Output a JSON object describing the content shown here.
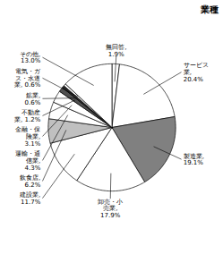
{
  "chart_data": {
    "type": "pie",
    "title": "業種",
    "categories": [
      "無回答,\n1.9%",
      "サービス\n業,\n20.4%",
      "製造業,\n19.1%",
      "卸売・小\n売業,\n17.9%",
      "建設業,\n11.7%",
      "飲食店,\n6.2%",
      "運輸・通\n信業,\n4.3%",
      "金融・保\n険業,\n3.1%",
      "不動産\n業, 1.2%",
      "鉱業,\n0.6%",
      "電気・ガ\nス・水道\n業, 0.6%",
      "その他,\n13.0%"
    ],
    "values": [
      1.9,
      20.4,
      19.1,
      17.9,
      11.7,
      6.2,
      4.3,
      3.1,
      1.2,
      0.6,
      0.6,
      13.0
    ],
    "colors": [
      "white",
      "white",
      "#808080",
      "white",
      "white",
      "#c0c0c0",
      "white",
      "white",
      "#505050",
      "#282828",
      "white",
      "white"
    ]
  }
}
